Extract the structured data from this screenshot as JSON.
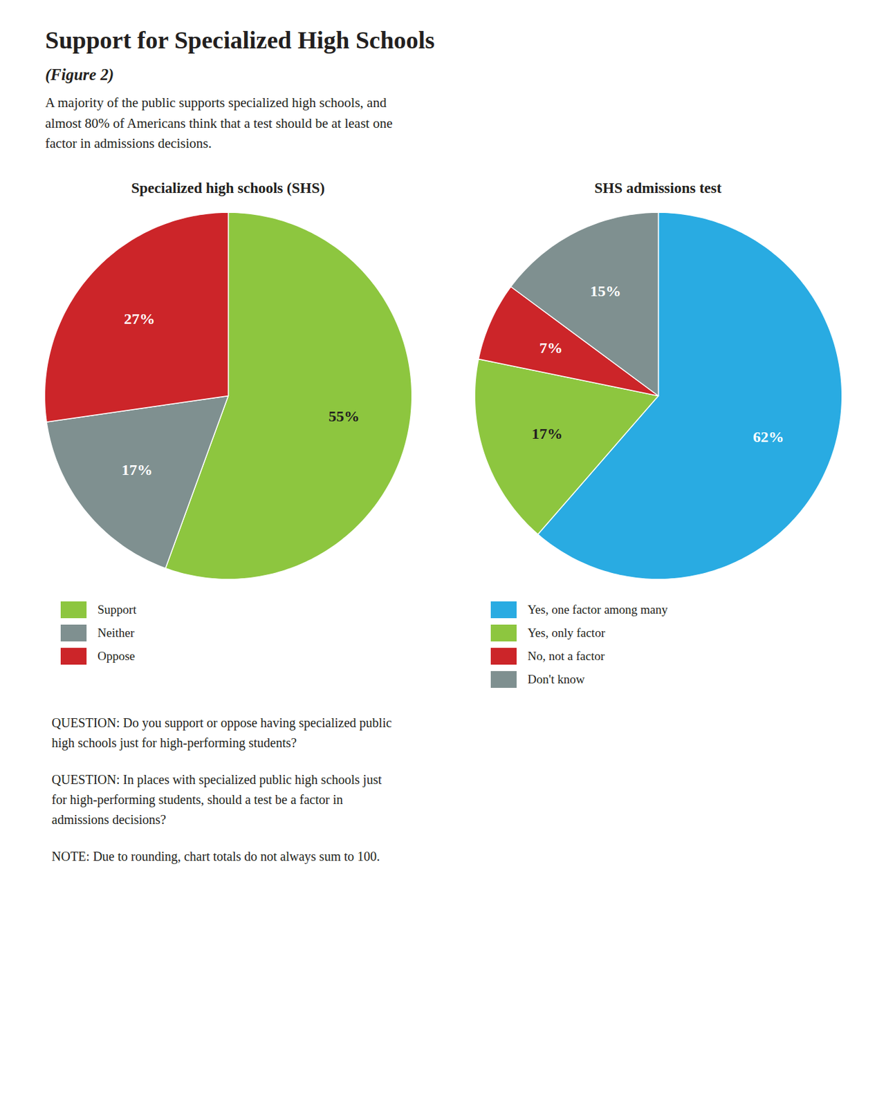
{
  "title": "Support for Specialized High Schools",
  "subtitle": "(Figure 2)",
  "description": "A majority of the public supports specialized high schools, and\nalmost 80% of Americans think that a test should be at least one\nfactor in admissions decisions.",
  "annotations": [
    "QUESTION: Do you support or oppose having specialized public\nhigh schools just for high-performing students?",
    "QUESTION: In places with specialized public high schools just\nfor high-performing students, should a test be a factor in\nadmissions decisions?",
    "NOTE: Due to rounding, chart totals do not always sum to 100."
  ],
  "chart_data": [
    {
      "type": "pie",
      "title": "Specialized high schools (SHS)",
      "categories": [
        "Support",
        "Neither",
        "Oppose"
      ],
      "values": [
        55,
        17,
        27
      ],
      "value_labels": [
        "55%",
        "17%",
        "27%"
      ],
      "colors": [
        "#8dc63f",
        "#7f9090",
        "#cc2529"
      ],
      "data_labels": true,
      "legend": "bottom"
    },
    {
      "type": "pie",
      "title": "SHS admissions test",
      "categories": [
        "Yes, one factor among many",
        "Yes, only factor",
        "No, not a factor",
        "Don't know"
      ],
      "values": [
        62,
        17,
        7,
        15
      ],
      "value_labels": [
        "62%",
        "17%",
        "7%",
        "15%"
      ],
      "colors": [
        "#29abe2",
        "#8dc63f",
        "#cc2529",
        "#7f9090"
      ],
      "data_labels": true,
      "legend": "bottom"
    }
  ]
}
